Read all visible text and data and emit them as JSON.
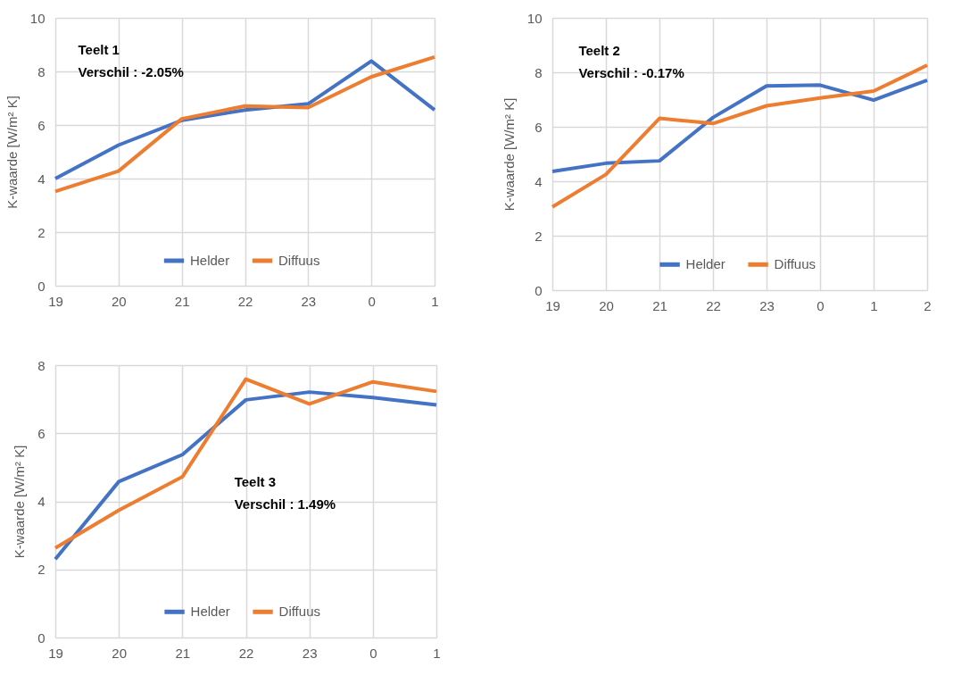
{
  "chart_data": [
    {
      "type": "line",
      "ylabel": "K-waarde [W/m² K]",
      "annotations": [
        "Teelt 1",
        "Verschil : -2.05%"
      ],
      "categories": [
        "19",
        "20",
        "21",
        "22",
        "23",
        "0",
        "1"
      ],
      "series": [
        {
          "name": "Helder",
          "color": "#4472c4",
          "values": [
            4.0,
            5.25,
            6.17,
            6.56,
            6.79,
            8.39,
            6.56
          ]
        },
        {
          "name": "Diffuus",
          "color": "#ed7d31",
          "values": [
            3.52,
            4.28,
            6.23,
            6.71,
            6.65,
            7.8,
            8.54
          ]
        }
      ],
      "ylim": [
        0,
        10
      ],
      "yticks": [
        0,
        2,
        4,
        6,
        8,
        10
      ],
      "grid": true,
      "legend": "bottom"
    },
    {
      "type": "line",
      "ylabel": "K-waarde [W/m² K]",
      "annotations": [
        "Teelt 2",
        "Verschil : -0.17%"
      ],
      "categories": [
        "19",
        "20",
        "21",
        "22",
        "23",
        "0",
        "1",
        "2"
      ],
      "series": [
        {
          "name": "Helder",
          "color": "#4472c4",
          "values": [
            4.36,
            4.66,
            4.75,
            6.34,
            7.5,
            7.53,
            6.98,
            7.71
          ]
        },
        {
          "name": "Diffuus",
          "color": "#ed7d31",
          "values": [
            3.06,
            4.25,
            6.31,
            6.12,
            6.77,
            7.06,
            7.31,
            8.26
          ]
        }
      ],
      "ylim": [
        0,
        10
      ],
      "yticks": [
        0,
        2,
        4,
        6,
        8,
        10
      ],
      "grid": true,
      "legend": "bottom"
    },
    {
      "type": "line",
      "ylabel": "K-waarde [W/m² K]",
      "annotations": [
        "Teelt 3",
        "Verschil : 1.49%"
      ],
      "categories": [
        "19",
        "20",
        "21",
        "22",
        "23",
        "0",
        "1"
      ],
      "series": [
        {
          "name": "Helder",
          "color": "#4472c4",
          "values": [
            2.3,
            4.58,
            5.37,
            6.98,
            7.21,
            7.05,
            6.83
          ]
        },
        {
          "name": "Diffuus",
          "color": "#ed7d31",
          "values": [
            2.63,
            3.74,
            4.72,
            7.59,
            6.86,
            7.51,
            7.23
          ]
        }
      ],
      "ylim": [
        0,
        8
      ],
      "yticks": [
        0,
        2,
        4,
        6,
        8
      ],
      "grid": true,
      "legend": "bottom"
    }
  ]
}
